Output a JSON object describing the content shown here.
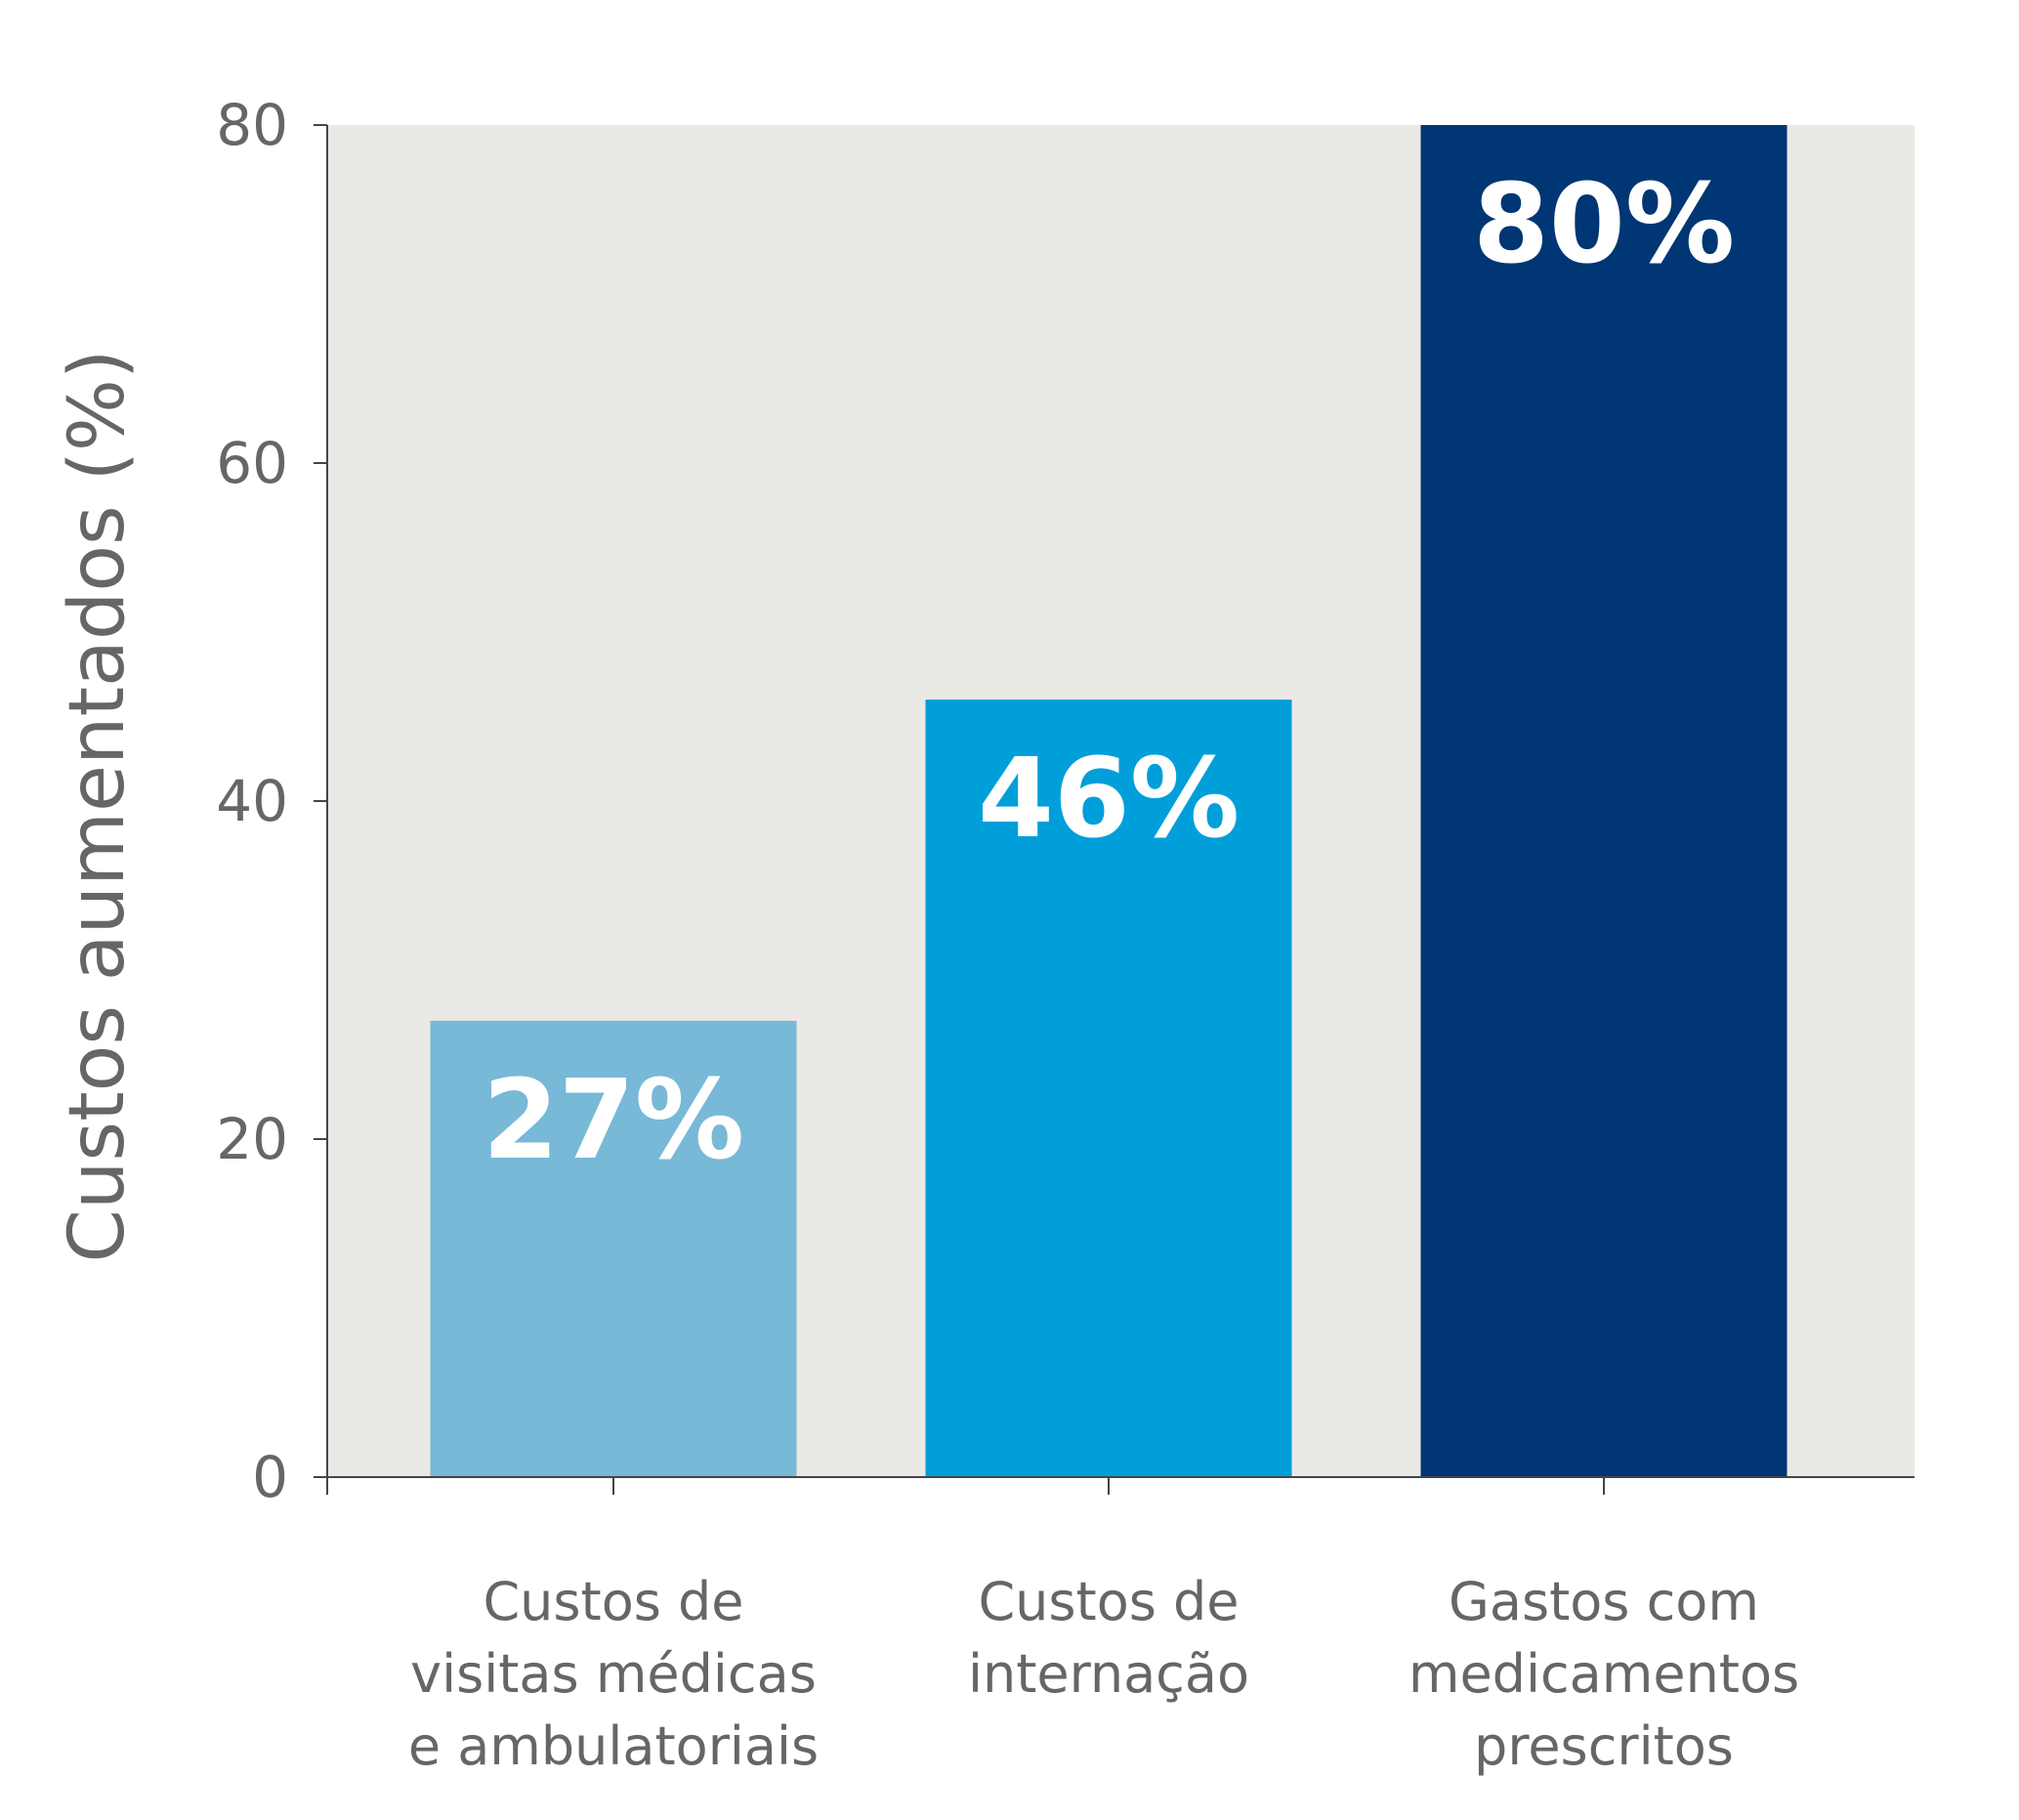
{
  "chart_data": {
    "type": "bar",
    "categories": [
      [
        "Custos de",
        "visitas médicas",
        "e ambulatoriais"
      ],
      [
        "Custos de",
        "internação"
      ],
      [
        "Gastos com",
        "medicamentos",
        "prescritos"
      ]
    ],
    "values": [
      27,
      46,
      80
    ],
    "data_labels": [
      "27%",
      "46%",
      "80%"
    ],
    "bar_colors": [
      "#77b9d7",
      "#009fda",
      "#003673"
    ],
    "title": "",
    "xlabel": "",
    "ylabel": "Custos aumentados (%)",
    "ylim": [
      0,
      80
    ],
    "yticks": [
      0,
      20,
      40,
      60,
      80
    ],
    "ytick_labels": [
      "0",
      "20",
      "40",
      "60",
      "80"
    ],
    "grid": false,
    "legend": "none",
    "plot_background": "#ebe9e6",
    "axis_color": "#444444",
    "text_color": "#666666",
    "data_label_color": "#ffffff"
  }
}
